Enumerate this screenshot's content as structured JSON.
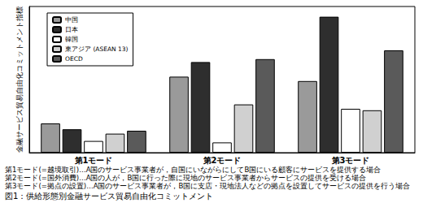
{
  "chart_data": {
    "type": "bar",
    "title": "図1：供給形態別金融サービス貿易自由化コミットメント",
    "ylabel": "金融サービス貿易自由化コミットメント指標",
    "categories": [
      "第1モード",
      "第2モード",
      "第3モード"
    ],
    "series": [
      {
        "name": "中国",
        "color": "#9a9a9a",
        "values": [
          0.2,
          0.52,
          0.49
        ]
      },
      {
        "name": "日本",
        "color": "#2e2e2e",
        "values": [
          0.16,
          0.62,
          0.93
        ]
      },
      {
        "name": "韓国",
        "color": "#ffffff",
        "values": [
          0.08,
          0.07,
          0.3
        ]
      },
      {
        "name": "東アジア (ASEAN 13)",
        "color": "#d0d0d0",
        "values": [
          0.13,
          0.33,
          0.29
        ]
      },
      {
        "name": "OECD",
        "color": "#5a5a5a",
        "values": [
          0.15,
          0.64,
          0.7
        ]
      }
    ],
    "ylim": [
      0,
      1
    ],
    "grid": false,
    "legend": "upper left",
    "tick_labels": "x",
    "annotations": [
      "第1モード(=越境取引)…A国のサービス事業者が，自国にいながらにしてB国にいる顧客にサービスを提供する場合",
      "第2モード(=国外消費)…A国の人が，B国に行った際に現地のサービス事業者からサービスの提供を受ける場合",
      "第3モード(=拠点の設置)…A国のサービス事業者が，B国に支店・現地法人などの拠点を設置してサービスの提供を行う場合"
    ]
  }
}
